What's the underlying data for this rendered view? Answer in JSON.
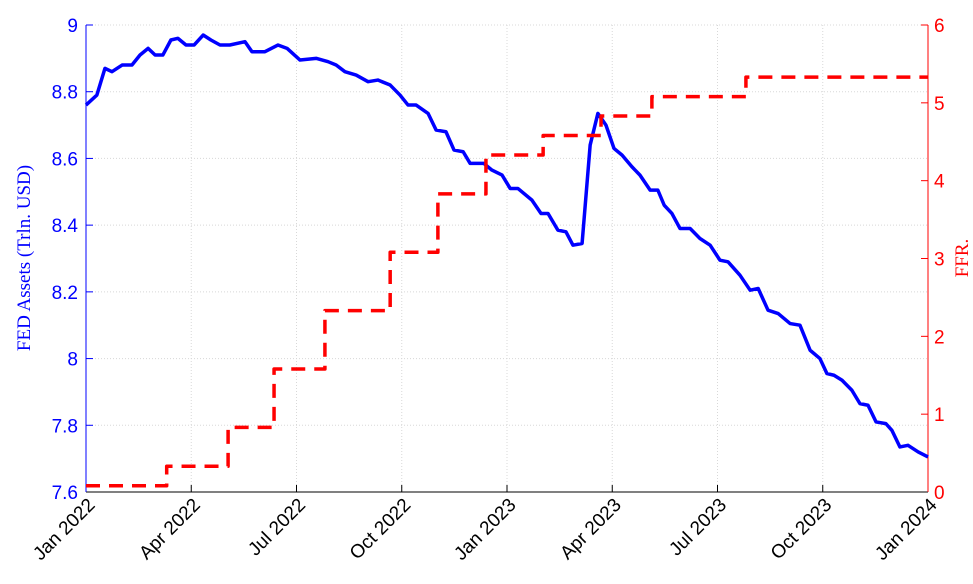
{
  "chart_data": {
    "type": "line",
    "ylabel": "FED Assets (Trln. USD)",
    "y2label": "FFR.",
    "xlim": [
      0,
      24
    ],
    "xticks": [
      {
        "value": 0,
        "label": "Jan 2022"
      },
      {
        "value": 3,
        "label": "Apr 2022"
      },
      {
        "value": 6,
        "label": "Jul 2022"
      },
      {
        "value": 9,
        "label": "Oct 2022"
      },
      {
        "value": 12,
        "label": "Jan 2023"
      },
      {
        "value": 15,
        "label": "Apr 2023"
      },
      {
        "value": 18,
        "label": "Jul 2023"
      },
      {
        "value": 21,
        "label": "Oct 2023"
      },
      {
        "value": 24,
        "label": "Jan 2024"
      }
    ],
    "ylim": [
      7.6,
      9
    ],
    "yticks": [
      7.6,
      7.8,
      8,
      8.2,
      8.4,
      8.6,
      8.8,
      9
    ],
    "y2lim": [
      0,
      6
    ],
    "y2ticks": [
      0,
      1,
      2,
      3,
      4,
      5,
      6
    ],
    "grid": true,
    "y_color": "#0000ff",
    "y2_color": "#ff0000",
    "series": [
      {
        "color": "#0000ff",
        "axis": "y",
        "dash": false,
        "x": [
          0,
          0.31,
          0.54,
          0.74,
          1.03,
          1.31,
          1.54,
          1.77,
          1.97,
          2.19,
          2.42,
          2.62,
          2.85,
          3.08,
          3.34,
          3.56,
          3.82,
          4.1,
          4.53,
          4.73,
          5.1,
          5.47,
          5.73,
          6.1,
          6.56,
          6.9,
          7.13,
          7.38,
          7.7,
          8.04,
          8.32,
          8.67,
          8.95,
          9.18,
          9.41,
          9.75,
          9.98,
          10.26,
          10.49,
          10.75,
          10.95,
          11.34,
          11.57,
          11.86,
          12.09,
          12.31,
          12.71,
          12.97,
          13.17,
          13.45,
          13.68,
          13.88,
          14.14,
          14.37,
          14.59,
          14.82,
          15.05,
          15.28,
          15.56,
          15.79,
          16.08,
          16.3,
          16.48,
          16.7,
          16.93,
          17.22,
          17.5,
          17.79,
          18.07,
          18.3,
          18.64,
          18.93,
          19.16,
          19.44,
          19.73,
          20.07,
          20.35,
          20.64,
          20.92,
          21.12,
          21.32,
          21.55,
          21.83,
          22.06,
          22.29,
          22.52,
          22.8,
          22.97,
          23.2,
          23.43,
          23.72,
          24
        ],
        "values": [
          8.76,
          8.79,
          8.87,
          8.86,
          8.88,
          8.88,
          8.91,
          8.93,
          8.91,
          8.91,
          8.955,
          8.96,
          8.94,
          8.94,
          8.97,
          8.955,
          8.94,
          8.94,
          8.95,
          8.92,
          8.92,
          8.94,
          8.93,
          8.895,
          8.9,
          8.89,
          8.88,
          8.86,
          8.85,
          8.83,
          8.835,
          8.82,
          8.79,
          8.76,
          8.76,
          8.735,
          8.685,
          8.68,
          8.625,
          8.62,
          8.585,
          8.585,
          8.565,
          8.55,
          8.51,
          8.51,
          8.475,
          8.435,
          8.435,
          8.385,
          8.38,
          8.34,
          8.345,
          8.64,
          8.735,
          8.7,
          8.63,
          8.61,
          8.575,
          8.55,
          8.505,
          8.505,
          8.46,
          8.435,
          8.39,
          8.39,
          8.36,
          8.34,
          8.295,
          8.29,
          8.25,
          8.205,
          8.21,
          8.145,
          8.135,
          8.105,
          8.1,
          8.025,
          8,
          7.955,
          7.95,
          7.935,
          7.905,
          7.865,
          7.86,
          7.81,
          7.805,
          7.785,
          7.735,
          7.74,
          7.72,
          7.705
        ]
      },
      {
        "color": "#ff0000",
        "axis": "y2",
        "dash": true,
        "x": [
          0,
          2.3,
          2.3,
          4.05,
          4.05,
          5.36,
          5.36,
          6.81,
          6.81,
          8.67,
          8.67,
          10.03,
          10.03,
          11.4,
          11.4,
          13.03,
          13.03,
          14.68,
          14.68,
          16.13,
          16.13,
          18.81,
          18.81,
          24
        ],
        "values": [
          0.08,
          0.08,
          0.33,
          0.33,
          0.83,
          0.83,
          1.58,
          1.58,
          2.33,
          2.33,
          3.08,
          3.08,
          3.83,
          3.83,
          4.33,
          4.33,
          4.58,
          4.58,
          4.83,
          4.83,
          5.08,
          5.08,
          5.33,
          5.33
        ]
      }
    ]
  }
}
